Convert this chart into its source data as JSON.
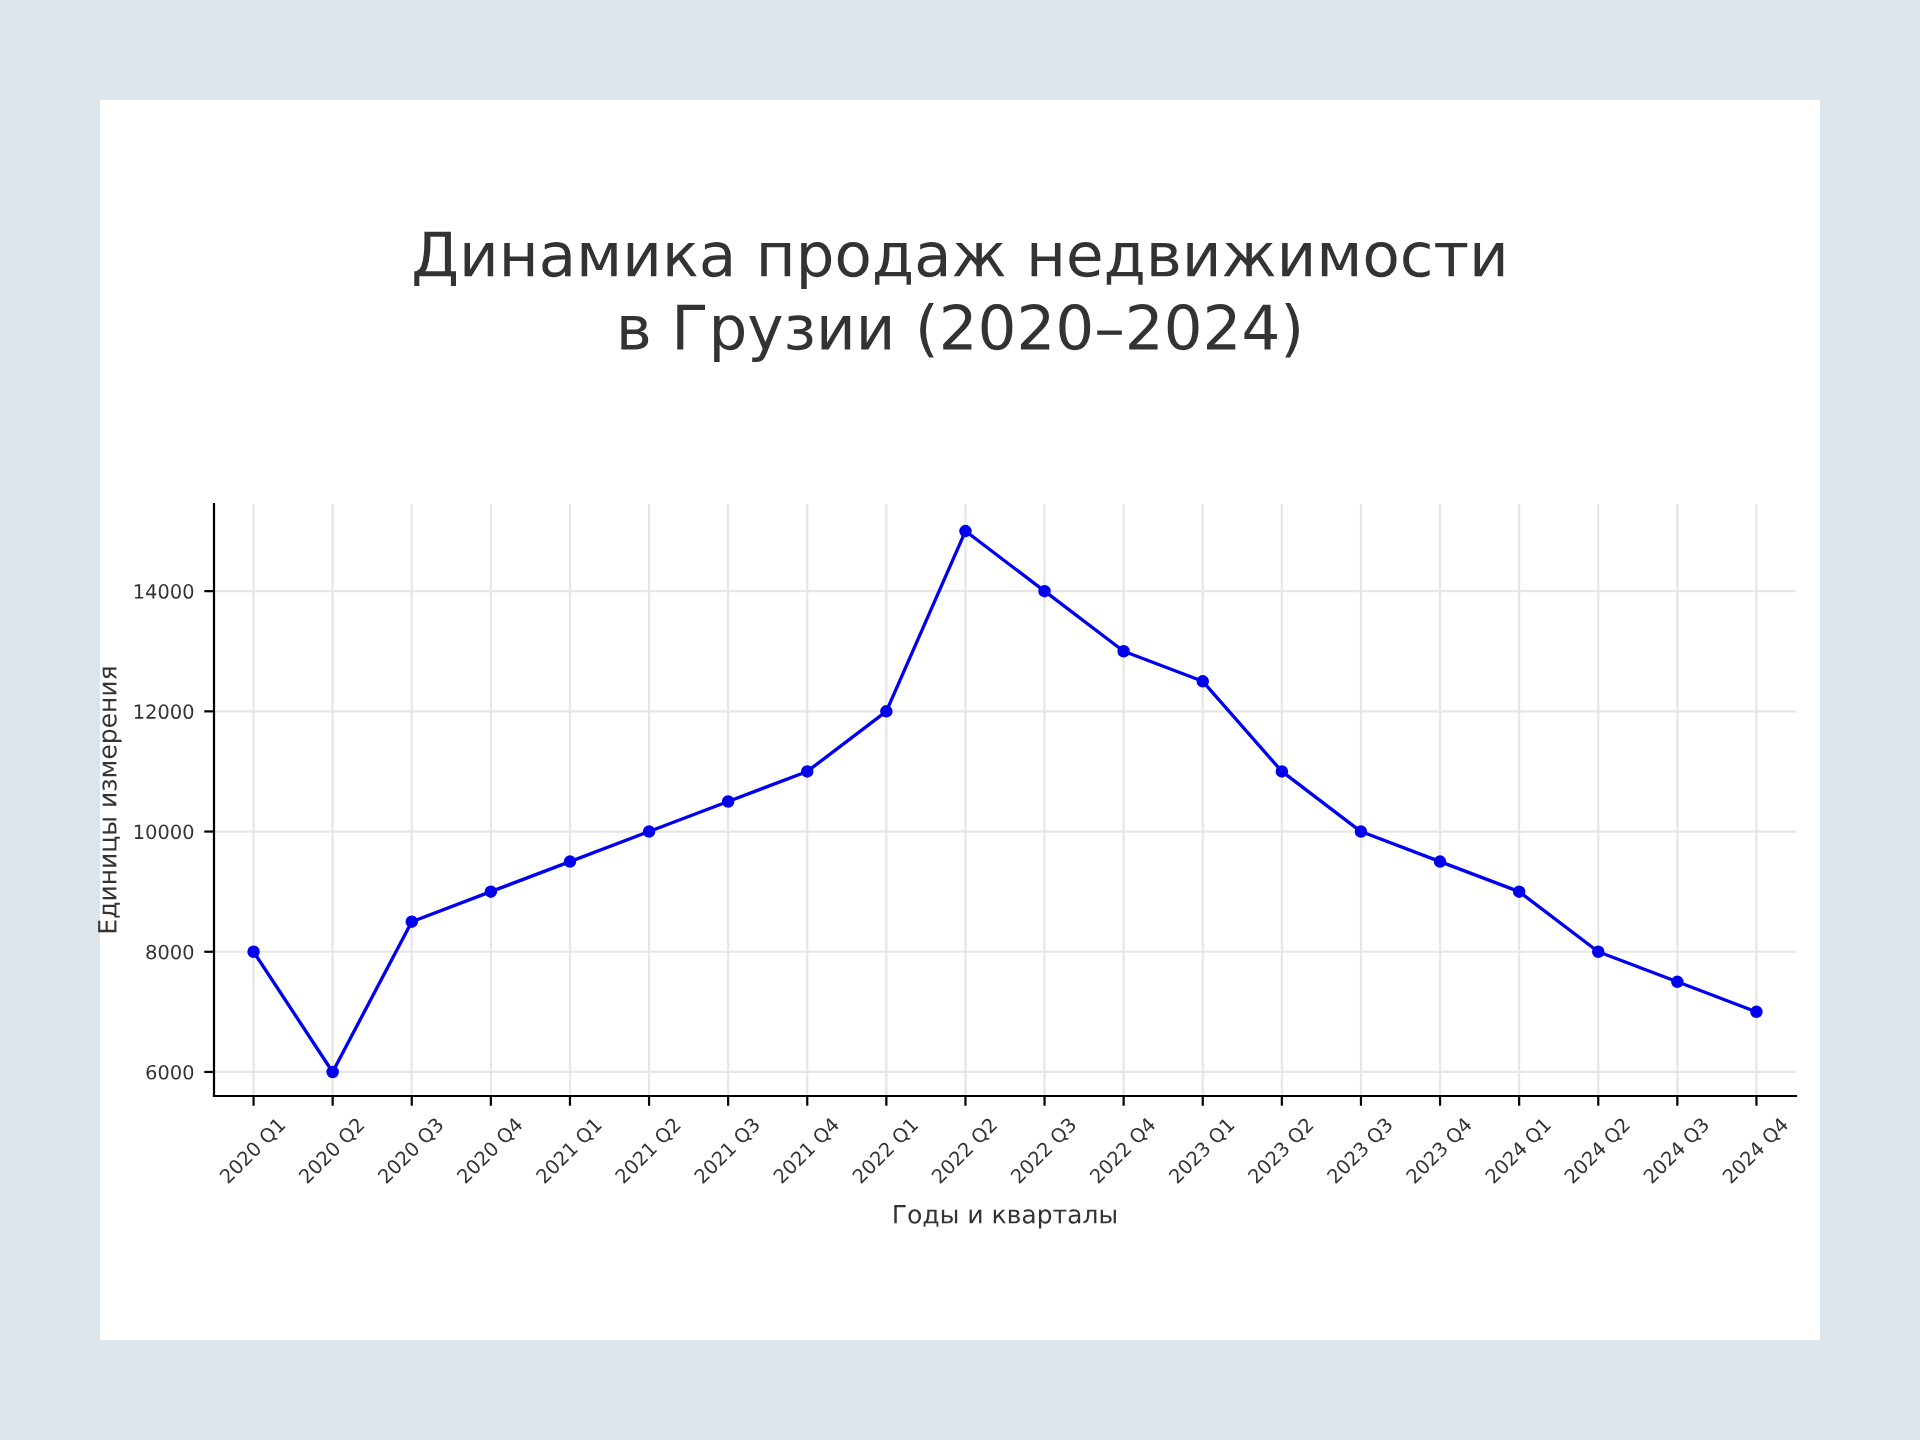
{
  "chart_data": {
    "type": "line",
    "title": "Динамика продаж недвижимости\nв Грузии (2020–2024)",
    "xlabel": "Годы и кварталы",
    "ylabel": "Единицы измерения",
    "categories": [
      "2020 Q1",
      "2020 Q2",
      "2020 Q3",
      "2020 Q4",
      "2021 Q1",
      "2021 Q2",
      "2021 Q3",
      "2021 Q4",
      "2022 Q1",
      "2022 Q2",
      "2022 Q3",
      "2022 Q4",
      "2023 Q1",
      "2023 Q2",
      "2023 Q3",
      "2023 Q4",
      "2024 Q1",
      "2024 Q2",
      "2024 Q3",
      "2024 Q4"
    ],
    "series": [
      {
        "color": "#0000ee",
        "values": [
          8000,
          6000,
          8500,
          9000,
          9500,
          10000,
          10500,
          11000,
          12000,
          15000,
          14000,
          13000,
          12500,
          11000,
          10000,
          9500,
          9000,
          8000,
          7500,
          7000
        ]
      }
    ],
    "ylim": [
      5600,
      15450
    ],
    "yticks": [
      6000,
      8000,
      10000,
      12000,
      14000
    ],
    "grid": true,
    "marker": "circle",
    "line_style": "solid"
  }
}
